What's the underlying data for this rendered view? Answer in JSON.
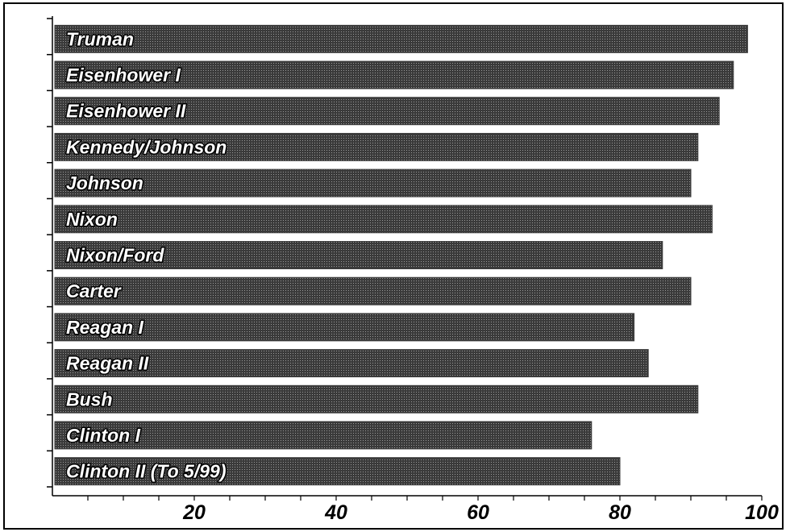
{
  "chart_data": {
    "type": "bar",
    "orientation": "horizontal",
    "title": "",
    "xlabel": "",
    "ylabel": "",
    "categories": [
      "Truman",
      "Eisenhower I",
      "Eisenhower II",
      "Kennedy/Johnson",
      "Johnson",
      "Nixon",
      "Nixon/Ford",
      "Carter",
      "Reagan I",
      "Reagan II",
      "Bush",
      "Clinton I",
      "Clinton II (To 5/99)"
    ],
    "values": [
      98,
      96,
      94,
      91,
      90,
      93,
      86,
      90,
      82,
      84,
      91,
      76,
      80
    ],
    "xlim": [
      0,
      100
    ],
    "xticks": [
      20,
      40,
      60,
      80,
      100
    ],
    "grid": false,
    "legend": "none",
    "colors": {
      "bar": "#3a3a3a",
      "bar_texture": "#9a9a9a",
      "label_text": "#ffffff",
      "axis": "#000000"
    }
  }
}
